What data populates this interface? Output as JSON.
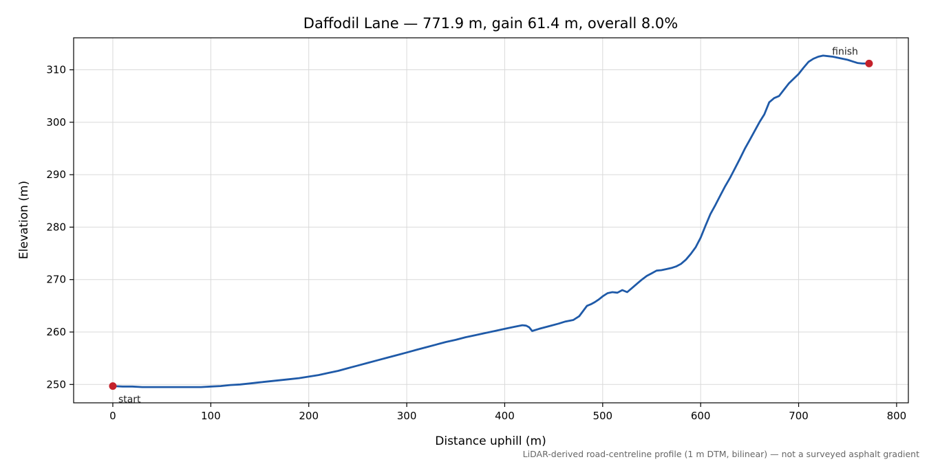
{
  "chart_data": {
    "type": "line",
    "title": "Daffodil Lane — 771.9 m, gain 61.4 m, overall 8.0%",
    "xlabel": "Distance uphill (m)",
    "ylabel": "Elevation (m)",
    "xlim": [
      -40,
      812
    ],
    "ylim": [
      246.5,
      316.1
    ],
    "xticks": [
      0,
      100,
      200,
      300,
      400,
      500,
      600,
      700,
      800
    ],
    "yticks": [
      250,
      260,
      270,
      280,
      290,
      300,
      310
    ],
    "grid": true,
    "line_color": "#1f5aa8",
    "marker_color": "#c4212b",
    "series": [
      {
        "x": [
          0,
          10,
          20,
          30,
          40,
          50,
          60,
          70,
          80,
          90,
          100,
          110,
          120,
          130,
          140,
          150,
          160,
          170,
          180,
          190,
          200,
          210,
          220,
          230,
          240,
          250,
          260,
          270,
          280,
          290,
          300,
          310,
          320,
          330,
          340,
          350,
          360,
          370,
          380,
          390,
          400,
          410,
          418,
          422,
          425,
          428,
          435,
          445,
          455,
          462,
          470,
          476,
          480,
          484,
          488,
          492,
          496,
          500,
          505,
          510,
          515,
          520,
          525,
          530,
          535,
          540,
          545,
          550,
          555,
          560,
          565,
          570,
          575,
          580,
          585,
          590,
          595,
          600,
          605,
          610,
          615,
          620,
          625,
          630,
          635,
          640,
          645,
          650,
          655,
          660,
          665,
          670,
          675,
          680,
          685,
          690,
          695,
          700,
          705,
          710,
          715,
          720,
          725,
          730,
          735,
          740,
          745,
          750,
          755,
          760,
          765,
          771.9
        ],
        "y": [
          249.7,
          249.6,
          249.6,
          249.5,
          249.5,
          249.5,
          249.5,
          249.5,
          249.5,
          249.5,
          249.6,
          249.7,
          249.9,
          250.0,
          250.2,
          250.4,
          250.6,
          250.8,
          251.0,
          251.2,
          251.5,
          251.8,
          252.2,
          252.6,
          253.1,
          253.6,
          254.1,
          254.6,
          255.1,
          255.6,
          256.1,
          256.6,
          257.1,
          257.6,
          258.1,
          258.5,
          259.0,
          259.4,
          259.8,
          260.2,
          260.6,
          261.0,
          261.3,
          261.2,
          260.9,
          260.2,
          260.6,
          261.1,
          261.6,
          262.0,
          262.3,
          263.0,
          264.0,
          265.0,
          265.3,
          265.7,
          266.2,
          266.8,
          267.4,
          267.6,
          267.5,
          268.0,
          267.6,
          268.4,
          269.2,
          270.0,
          270.7,
          271.2,
          271.7,
          271.8,
          272.0,
          272.2,
          272.5,
          273.0,
          273.8,
          274.9,
          276.2,
          278.0,
          280.3,
          282.5,
          284.2,
          286.0,
          287.8,
          289.4,
          291.2,
          293.0,
          294.9,
          296.6,
          298.3,
          300.0,
          301.5,
          303.8,
          304.6,
          305.0,
          306.2,
          307.4,
          308.3,
          309.2,
          310.4,
          311.5,
          312.1,
          312.5,
          312.7,
          312.6,
          312.5,
          312.3,
          312.1,
          311.9,
          311.6,
          311.3,
          311.2,
          311.2
        ]
      }
    ],
    "markers": [
      {
        "label": "start",
        "x": 0,
        "y": 249.7
      },
      {
        "label": "finish",
        "x": 771.9,
        "y": 311.2
      }
    ],
    "footer": "LiDAR-derived road-centreline profile (1 m DTM, bilinear) — not a surveyed asphalt gradient"
  }
}
